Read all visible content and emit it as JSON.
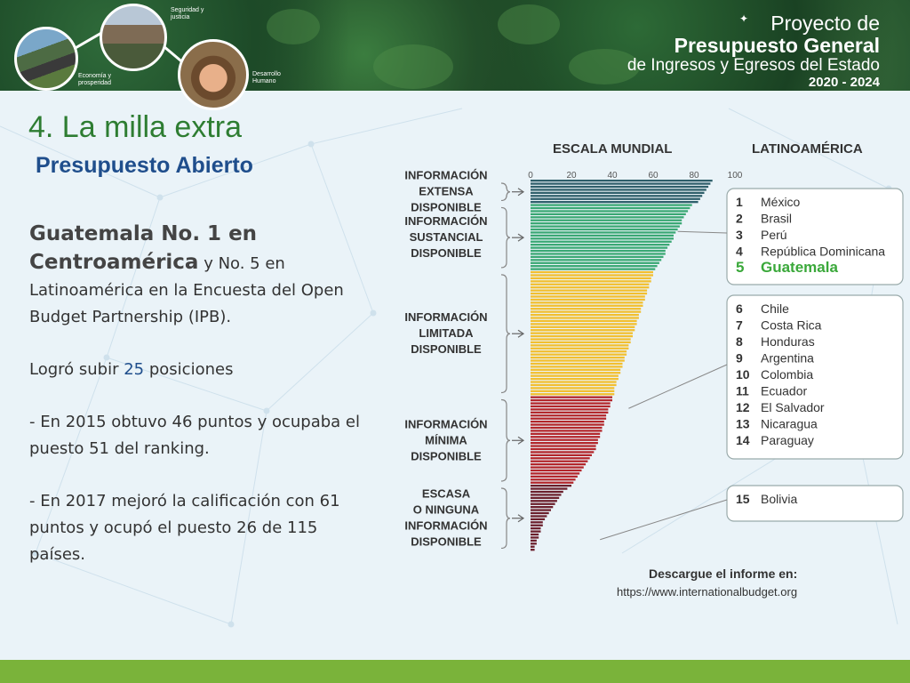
{
  "banner": {
    "circles": [
      {
        "label": "Economía y prosperidad"
      },
      {
        "label": "Seguridad y justicia"
      },
      {
        "label": "Desarrollo Humano"
      }
    ],
    "project_title": {
      "line1": "Proyecto de",
      "line2": "Presupuesto General",
      "line3": "de Ingresos y Egresos del Estado",
      "line4": "2020 - 2024"
    }
  },
  "slide": {
    "title": "4. La milla extra",
    "subtitle": "Presupuesto Abierto",
    "headline_bold": "Guatemala No. 1 en Centroamérica",
    "headline_rest": " y No. 5 en Latinoamérica en la Encuesta del Open Budget Partnership (IPB).",
    "positions_pre": "Logró subir ",
    "positions_num": "25",
    "positions_post": " posiciones",
    "p2015": "- En 2015 obtuvo 46 puntos y ocupaba el puesto 51 del ranking.",
    "p2017": "- En 2017 mejoró la calificación con 61 puntos y ocupó el puesto 26 de 115 países."
  },
  "chart_data": {
    "type": "bar",
    "title_left": "ESCALA MUNDIAL",
    "title_right": "LATINOAMÉRICA",
    "xlim": [
      0,
      100
    ],
    "ticks": [
      0,
      20,
      40,
      60,
      80,
      100
    ],
    "categories_groups": [
      {
        "label": "INFORMACIÓN EXTENSA DISPONIBLE",
        "color": "#2f5f6b",
        "values": [
          89,
          88,
          87,
          86,
          85,
          84,
          83,
          82
        ]
      },
      {
        "label": "INFORMACIÓN SUSTANCIAL DISPONIBLE",
        "color": "#3aa874",
        "values": [
          79,
          78,
          77,
          76,
          75,
          74,
          74,
          73,
          72,
          71,
          70,
          70,
          69,
          68,
          67,
          66,
          66,
          65,
          64,
          63,
          62,
          61
        ]
      },
      {
        "label": "INFORMACIÓN LIMITADA DISPONIBLE",
        "color": "#f2bf2f",
        "values": [
          60,
          60,
          59,
          59,
          58,
          58,
          57,
          57,
          56,
          56,
          55,
          55,
          54,
          54,
          53,
          53,
          52,
          52,
          51,
          51,
          50,
          50,
          49,
          49,
          48,
          48,
          47,
          47,
          46,
          46,
          45,
          45,
          44,
          44,
          43,
          43,
          42,
          42,
          41,
          41,
          41
        ]
      },
      {
        "label": "INFORMACIÓN MÍNIMA DISPONIBLE",
        "color": "#b3262b",
        "values": [
          40,
          40,
          39,
          39,
          38,
          38,
          37,
          37,
          36,
          36,
          35,
          35,
          34,
          34,
          33,
          33,
          32,
          32,
          31,
          30,
          29,
          28,
          27,
          26,
          25,
          24,
          23,
          22,
          21
        ]
      },
      {
        "label": "ESCASA O NINGUNA INFORMACIÓN DISPONIBLE",
        "color": "#6b1f2c",
        "values": [
          20,
          18,
          16,
          15,
          14,
          13,
          12,
          11,
          10,
          9,
          8,
          7,
          6,
          6,
          5,
          5,
          4,
          4,
          3,
          3,
          2,
          2
        ]
      }
    ],
    "latam_groups": [
      {
        "items": [
          {
            "rank": "1",
            "country": "México"
          },
          {
            "rank": "2",
            "country": "Brasil"
          },
          {
            "rank": "3",
            "country": "Perú"
          },
          {
            "rank": "4",
            "country": "República Dominicana"
          },
          {
            "rank": "5",
            "country": "Guatemala",
            "highlight": true
          }
        ]
      },
      {
        "items": [
          {
            "rank": "6",
            "country": "Chile"
          },
          {
            "rank": "7",
            "country": "Costa Rica"
          },
          {
            "rank": "8",
            "country": "Honduras"
          },
          {
            "rank": "9",
            "country": "Argentina"
          },
          {
            "rank": "10",
            "country": "Colombia"
          },
          {
            "rank": "11",
            "country": "Ecuador"
          },
          {
            "rank": "12",
            "country": "El Salvador"
          },
          {
            "rank": "13",
            "country": "Nicaragua"
          },
          {
            "rank": "14",
            "country": "Paraguay"
          }
        ]
      },
      {
        "items": [
          {
            "rank": "15",
            "country": "Bolivia"
          }
        ]
      }
    ],
    "download_label": "Descargue el informe en:",
    "download_url": "https://www.internationalbudget.org",
    "highlight_color": "#3aa83a"
  }
}
